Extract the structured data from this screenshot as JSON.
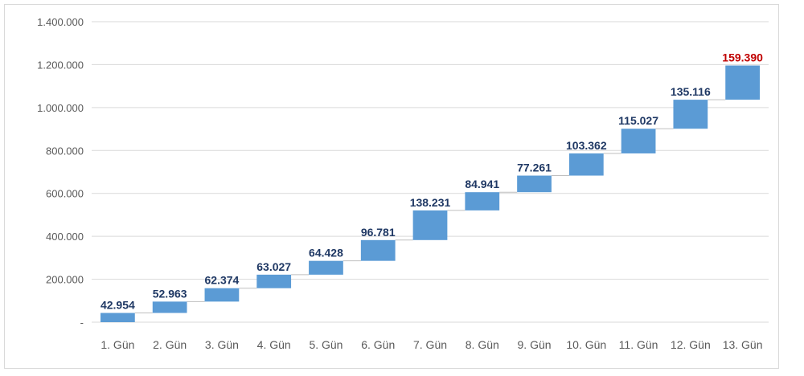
{
  "chart_data": {
    "type": "bar",
    "subtype": "waterfall",
    "categories": [
      "1. Gün",
      "2. Gün",
      "3. Gün",
      "4. Gün",
      "5. Gün",
      "6. Gün",
      "7. Gün",
      "8. Gün",
      "9. Gün",
      "10. Gün",
      "11. Gün",
      "12. Gün",
      "13. Gün"
    ],
    "values": [
      42954,
      52963,
      62374,
      63027,
      64428,
      96781,
      138231,
      84941,
      77261,
      103362,
      115027,
      135116,
      159390
    ],
    "value_labels": [
      "42.954",
      "52.963",
      "62.374",
      "63.027",
      "64.428",
      "96.781",
      "138.231",
      "84.941",
      "77.261",
      "103.362",
      "115.027",
      "135.116",
      "159.390"
    ],
    "y_ticks": [
      "-",
      "200.000",
      "400.000",
      "600.000",
      "800.000",
      "1.000.000",
      "1.200.000",
      "1.400.000"
    ],
    "ylim": [
      0,
      1400000
    ],
    "ytick_step": 200000,
    "grid": true,
    "legend": "none",
    "title": "",
    "xlabel": "",
    "ylabel": "",
    "colors": {
      "bar": "#5b9bd5",
      "connector": "#bfbfbf",
      "grid": "#d9d9d9",
      "label": "#1f3864",
      "last_label": "#c00000",
      "axis_text": "#595959"
    }
  }
}
